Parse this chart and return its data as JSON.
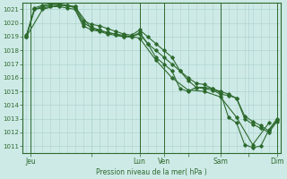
{
  "title": "Pression niveau de la mer( hPa )",
  "bg_color": "#ceeae7",
  "grid_color": "#add4d0",
  "line_color": "#2d6a2d",
  "spine_color": "#2d6a2d",
  "ylim": [
    1010.5,
    1021.5
  ],
  "yticks": [
    1011,
    1012,
    1013,
    1014,
    1015,
    1016,
    1017,
    1018,
    1019,
    1020,
    1021
  ],
  "xlim": [
    -0.5,
    31.5
  ],
  "day_labels": [
    "Jeu",
    "",
    "Lun",
    "Ven",
    "",
    "Sam",
    "",
    "Dim"
  ],
  "day_positions": [
    0.5,
    8,
    14,
    17,
    20,
    24,
    27.5,
    31
  ],
  "vline_positions": [
    0.5,
    14,
    17,
    24,
    31
  ],
  "series1": [
    1019.0,
    1021.0,
    1021.2,
    1021.3,
    1021.3,
    1021.3,
    1021.1,
    1020.0,
    1019.7,
    1019.5,
    1019.3,
    1019.2,
    1019.0,
    1019.0,
    1019.3,
    1018.5,
    1017.5,
    1017.0,
    1016.5,
    1015.2,
    1015.0,
    1015.3,
    1015.3,
    1015.2,
    1014.9,
    1013.1,
    1012.7,
    1011.1,
    1010.9,
    1011.0,
    1012.2,
    1013.0
  ],
  "series2": [
    1019.1,
    1021.1,
    1021.3,
    1021.4,
    1021.4,
    1021.3,
    1021.2,
    1020.2,
    1019.9,
    1019.8,
    1019.6,
    1019.4,
    1019.2,
    1019.1,
    1019.5,
    1019.0,
    1018.5,
    1018.0,
    1017.5,
    1016.5,
    1016.0,
    1015.6,
    1015.5,
    1015.2,
    1015.0,
    1014.8,
    1014.5,
    1013.2,
    1012.8,
    1012.5,
    1012.1,
    1012.9
  ],
  "series3": [
    1019.0,
    1021.0,
    1021.1,
    1021.2,
    1021.2,
    1021.1,
    1021.0,
    1019.8,
    1019.5,
    1019.4,
    1019.2,
    1019.1,
    1019.0,
    1019.0,
    1019.2,
    1018.5,
    1018.0,
    1017.5,
    1017.0,
    1016.5,
    1015.8,
    1015.3,
    1015.2,
    1015.1,
    1014.8,
    1014.7,
    1014.5,
    1013.0,
    1012.6,
    1012.3,
    1012.0,
    1012.8
  ],
  "series4_x": [
    0,
    2,
    4,
    6,
    8,
    10,
    12,
    14,
    16,
    18,
    20,
    22,
    24,
    26,
    28,
    30
  ],
  "series4_y": [
    1019.0,
    1021.0,
    1021.3,
    1021.2,
    1019.6,
    1019.3,
    1019.1,
    1018.9,
    1017.3,
    1016.0,
    1015.1,
    1015.0,
    1014.6,
    1013.1,
    1011.1,
    1012.7
  ]
}
